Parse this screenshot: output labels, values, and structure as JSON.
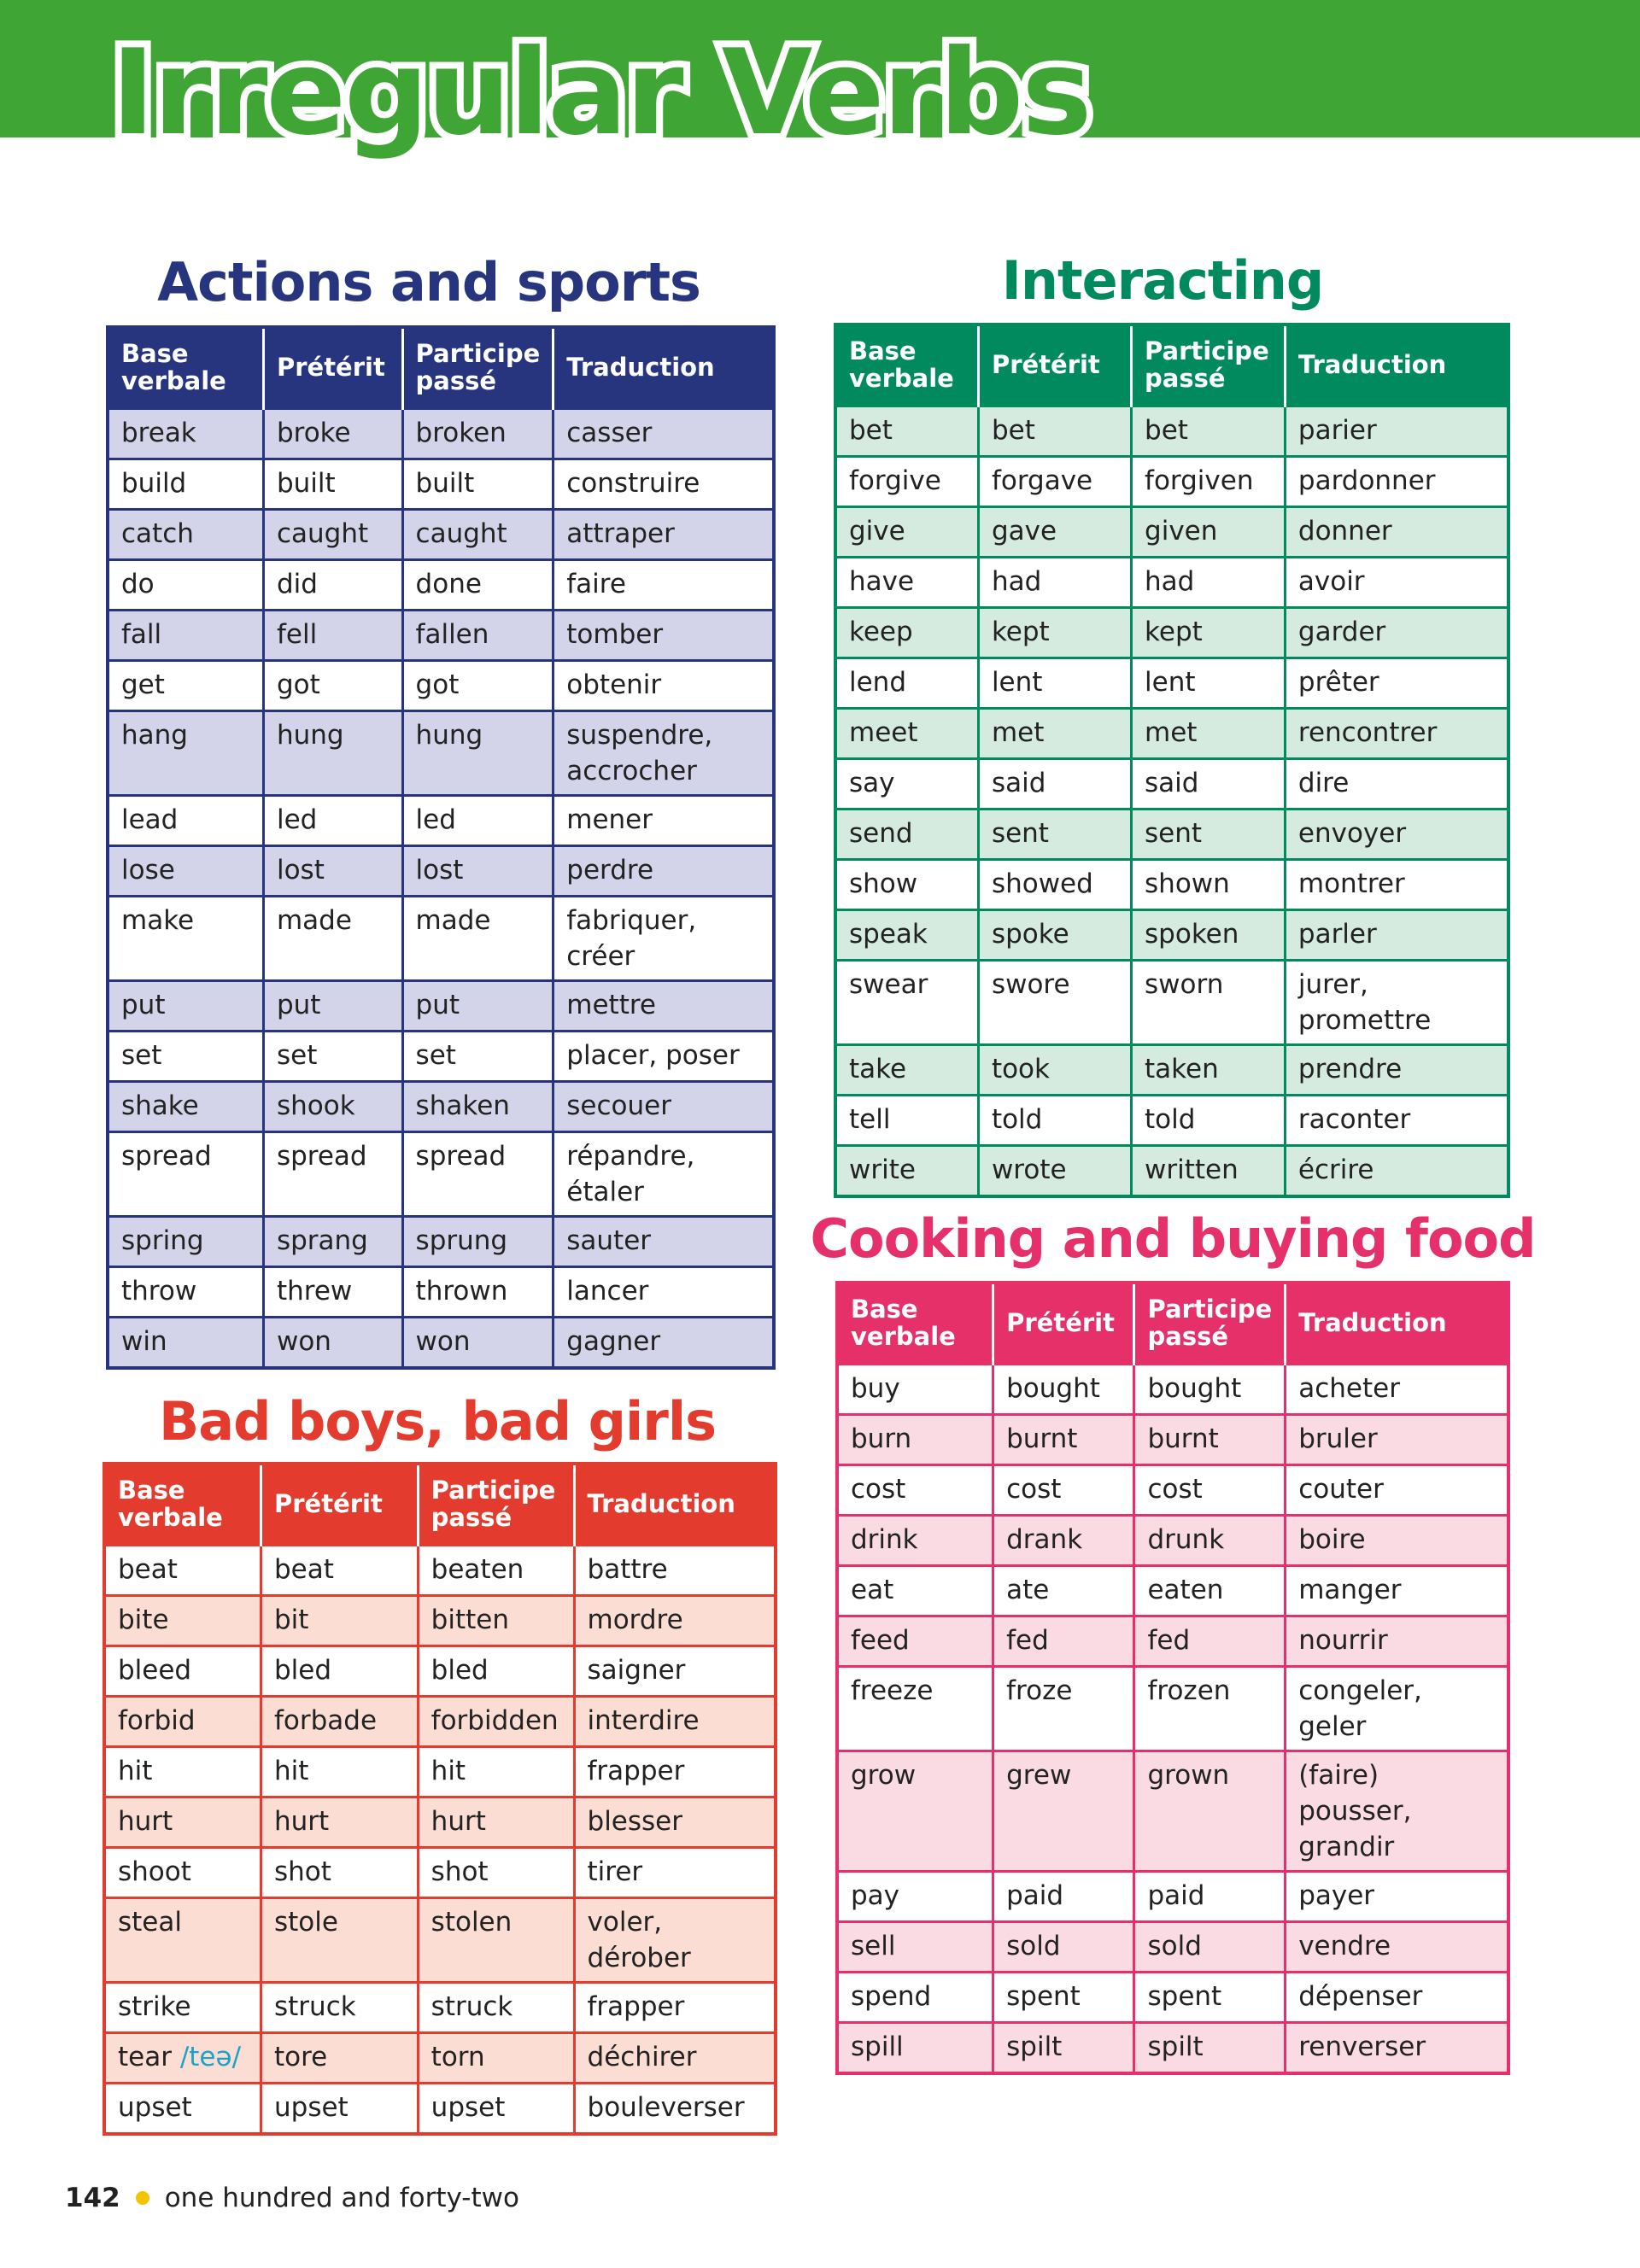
{
  "title": "Irregular Verbs",
  "headers": [
    "Base verbale",
    "Prétérit",
    "Participe passé",
    "Traduction"
  ],
  "colors": {
    "banner": "#3fa535",
    "actions": "#27357f",
    "interacting": "#008a5e",
    "cooking": "#e5306a",
    "bad": "#e33b2e"
  },
  "sections": {
    "actions": {
      "title": "Actions and sports",
      "rows": [
        [
          "break",
          "broke",
          "broken",
          "casser"
        ],
        [
          "build",
          "built",
          "built",
          "construire"
        ],
        [
          "catch",
          "caught",
          "caught",
          "attraper"
        ],
        [
          "do",
          "did",
          "done",
          "faire"
        ],
        [
          "fall",
          "fell",
          "fallen",
          "tomber"
        ],
        [
          "get",
          "got",
          "got",
          "obtenir"
        ],
        [
          "hang",
          "hung",
          "hung",
          "suspendre, accrocher"
        ],
        [
          "lead",
          "led",
          "led",
          "mener"
        ],
        [
          "lose",
          "lost",
          "lost",
          "perdre"
        ],
        [
          "make",
          "made",
          "made",
          "fabriquer, créer"
        ],
        [
          "put",
          "put",
          "put",
          "mettre"
        ],
        [
          "set",
          "set",
          "set",
          "placer, poser"
        ],
        [
          "shake",
          "shook",
          "shaken",
          "secouer"
        ],
        [
          "spread",
          "spread",
          "spread",
          "répandre, étaler"
        ],
        [
          "spring",
          "sprang",
          "sprung",
          "sauter"
        ],
        [
          "throw",
          "threw",
          "thrown",
          "lancer"
        ],
        [
          "win",
          "won",
          "won",
          "gagner"
        ]
      ]
    },
    "interacting": {
      "title": "Interacting",
      "rows": [
        [
          "bet",
          "bet",
          "bet",
          "parier"
        ],
        [
          "forgive",
          "forgave",
          "forgiven",
          "pardonner"
        ],
        [
          "give",
          "gave",
          "given",
          "donner"
        ],
        [
          "have",
          "had",
          "had",
          "avoir"
        ],
        [
          "keep",
          "kept",
          "kept",
          "garder"
        ],
        [
          "lend",
          "lent",
          "lent",
          "prêter"
        ],
        [
          "meet",
          "met",
          "met",
          "rencontrer"
        ],
        [
          "say",
          "said",
          "said",
          "dire"
        ],
        [
          "send",
          "sent",
          "sent",
          "envoyer"
        ],
        [
          "show",
          "showed",
          "shown",
          "montrer"
        ],
        [
          "speak",
          "spoke",
          "spoken",
          "parler"
        ],
        [
          "swear",
          "swore",
          "sworn",
          "jurer, promettre"
        ],
        [
          "take",
          "took",
          "taken",
          "prendre"
        ],
        [
          "tell",
          "told",
          "told",
          "raconter"
        ],
        [
          "write",
          "wrote",
          "written",
          "écrire"
        ]
      ]
    },
    "cooking": {
      "title": "Cooking and buying food",
      "rows": [
        [
          "buy",
          "bought",
          "bought",
          "acheter"
        ],
        [
          "burn",
          "burnt",
          "burnt",
          "bruler"
        ],
        [
          "cost",
          "cost",
          "cost",
          "couter"
        ],
        [
          "drink",
          "drank",
          "drunk",
          "boire"
        ],
        [
          "eat",
          "ate",
          "eaten",
          "manger"
        ],
        [
          "feed",
          "fed",
          "fed",
          "nourrir"
        ],
        [
          "freeze",
          "froze",
          "frozen",
          "congeler, geler"
        ],
        [
          "grow",
          "grew",
          "grown",
          "(faire) pousser, grandir"
        ],
        [
          "pay",
          "paid",
          "paid",
          "payer"
        ],
        [
          "sell",
          "sold",
          "sold",
          "vendre"
        ],
        [
          "spend",
          "spent",
          "spent",
          "dépenser"
        ],
        [
          "spill",
          "spilt",
          "spilt",
          "renverser"
        ]
      ]
    },
    "bad": {
      "title": "Bad boys, bad girls",
      "rows": [
        [
          "beat",
          "beat",
          "beaten",
          "battre"
        ],
        [
          "bite",
          "bit",
          "bitten",
          "mordre"
        ],
        [
          "bleed",
          "bled",
          "bled",
          "saigner"
        ],
        [
          "forbid",
          "forbade",
          "forbidden",
          "interdire"
        ],
        [
          "hit",
          "hit",
          "hit",
          "frapper"
        ],
        [
          "hurt",
          "hurt",
          "hurt",
          "blesser"
        ],
        [
          "shoot",
          "shot",
          "shot",
          "tirer"
        ],
        [
          "steal",
          "stole",
          "stolen",
          "voler, dérober"
        ],
        [
          "strike",
          "struck",
          "struck",
          "frapper"
        ],
        [
          "tear",
          "tore",
          "torn",
          "déchirer"
        ],
        [
          "upset",
          "upset",
          "upset",
          "bouleverser"
        ]
      ],
      "pronunciation": "/teə/"
    }
  },
  "footer": {
    "page_number": "142",
    "page_words": "one hundred and forty-two"
  }
}
